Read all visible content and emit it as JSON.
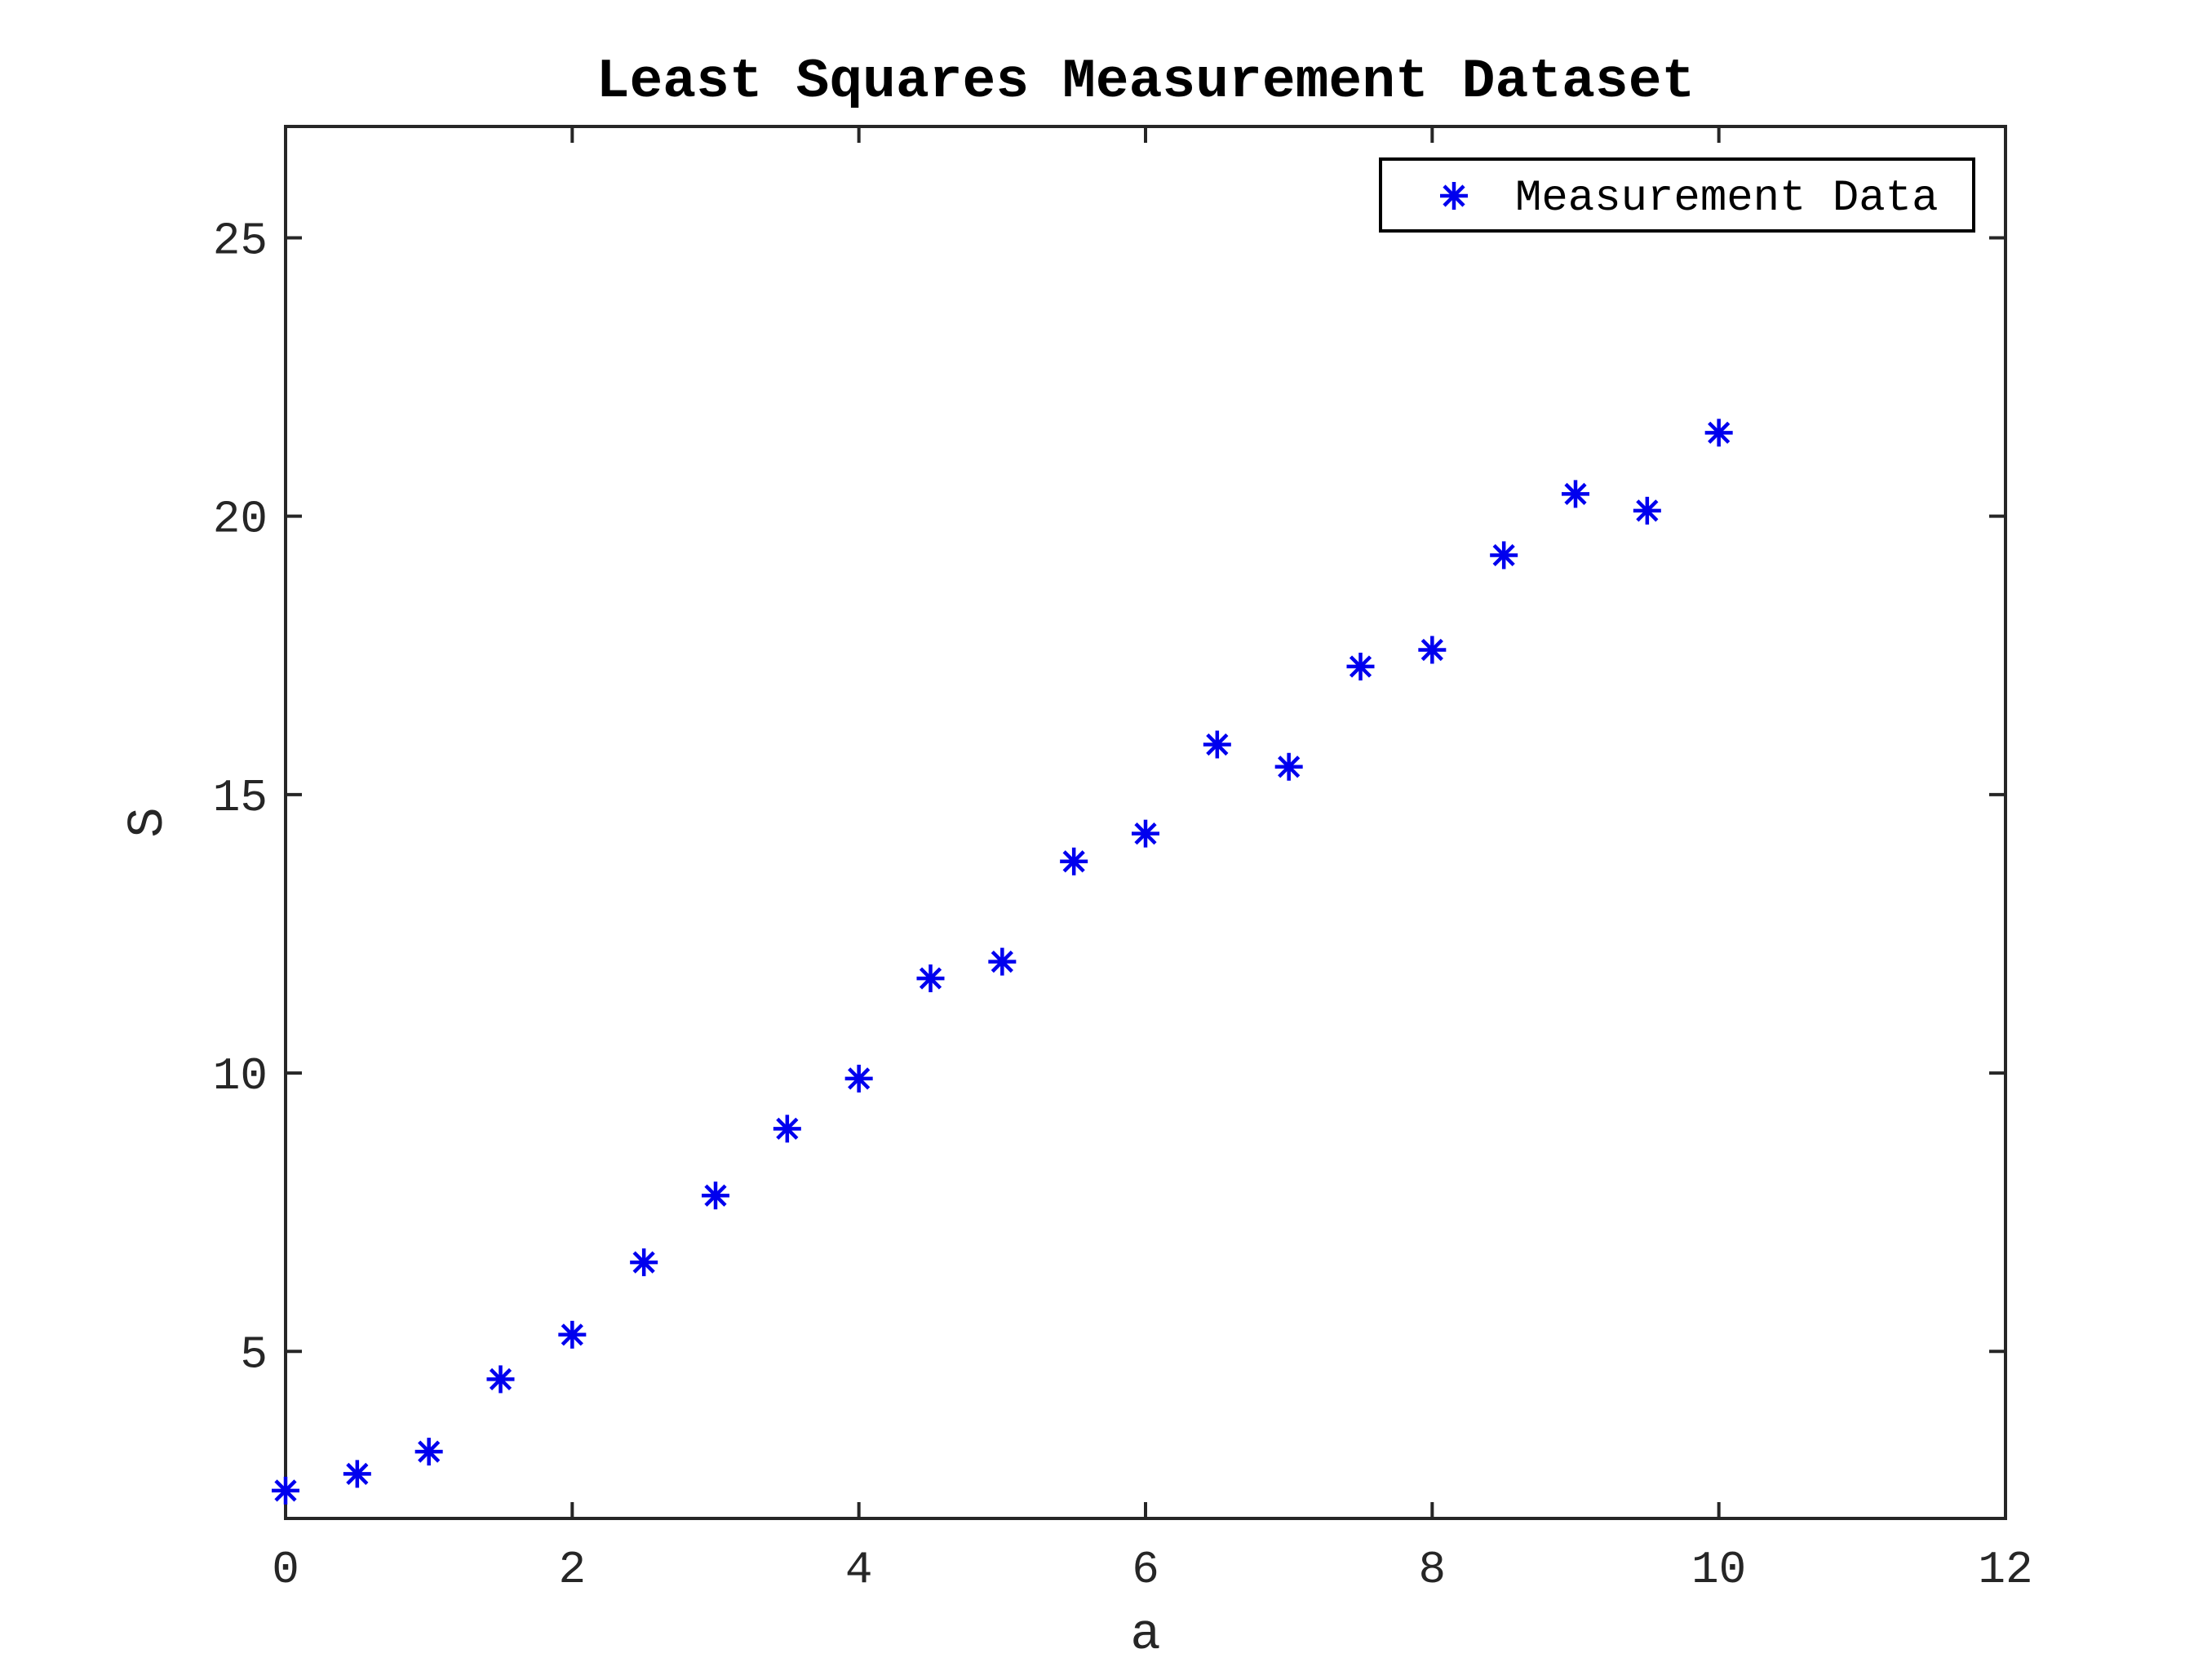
{
  "chart_data": {
    "type": "scatter",
    "title": "Least Squares Measurement Dataset",
    "xlabel": "a",
    "ylabel": "S",
    "xlim": [
      0,
      12
    ],
    "ylim": [
      2,
      27
    ],
    "xticks": [
      0,
      2,
      4,
      6,
      8,
      10,
      12
    ],
    "yticks": [
      5,
      10,
      15,
      20,
      25
    ],
    "grid": false,
    "legend_position": "top-right",
    "series": [
      {
        "name": "Measurement Data",
        "marker": "asterisk",
        "color": "#0000ee",
        "x": [
          0,
          0.5,
          1,
          1.5,
          2,
          2.5,
          3,
          3.5,
          4,
          4.5,
          5,
          5.5,
          6,
          6.5,
          7,
          7.5,
          8,
          8.5,
          9,
          9.5,
          10
        ],
        "y": [
          2.5,
          2.8,
          3.2,
          4.5,
          5.3,
          6.6,
          7.8,
          9.0,
          9.9,
          11.7,
          12.0,
          13.8,
          14.3,
          15.9,
          15.5,
          17.3,
          17.6,
          19.3,
          20.4,
          20.1,
          21.5
        ]
      }
    ]
  }
}
